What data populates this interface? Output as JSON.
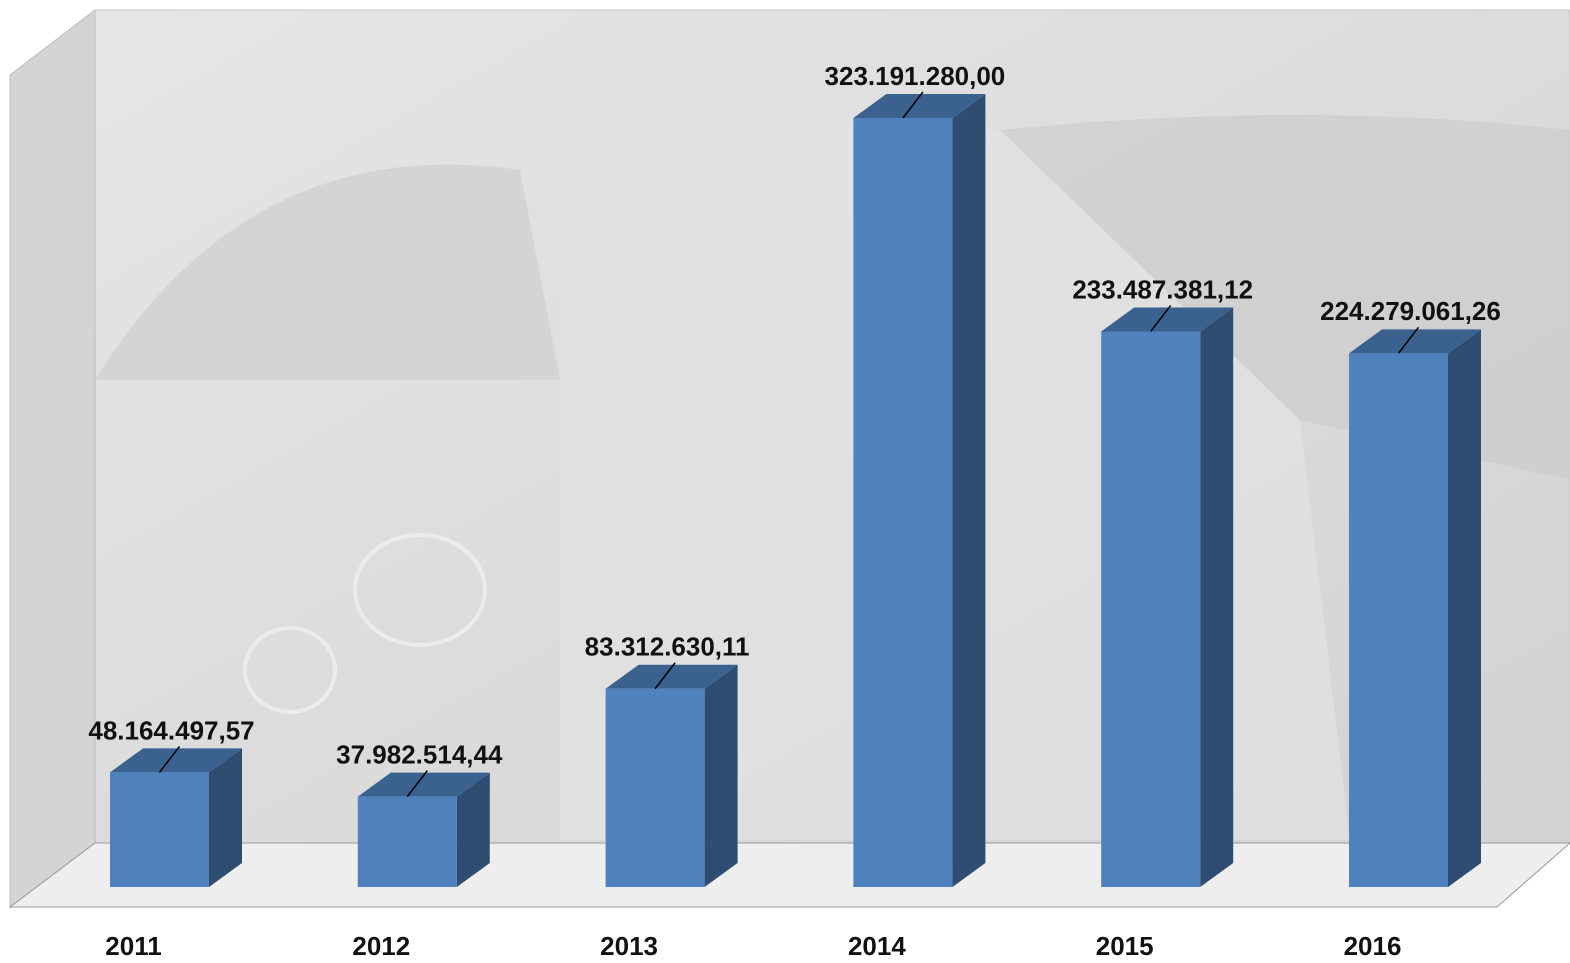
{
  "chart_data": {
    "type": "bar3d",
    "categories": [
      "2011",
      "2012",
      "2013",
      "2014",
      "2015",
      "2016"
    ],
    "values": [
      48164497.57,
      37982514.44,
      83312630.11,
      323191280.0,
      233487381.12,
      224279061.26
    ],
    "value_labels": [
      "48.164.497,57",
      "37.982.514,44",
      "83.312.630,11",
      "323.191.280,00",
      "233.487.381,12",
      "224.279.061,26"
    ],
    "color": "#4f81bd"
  }
}
